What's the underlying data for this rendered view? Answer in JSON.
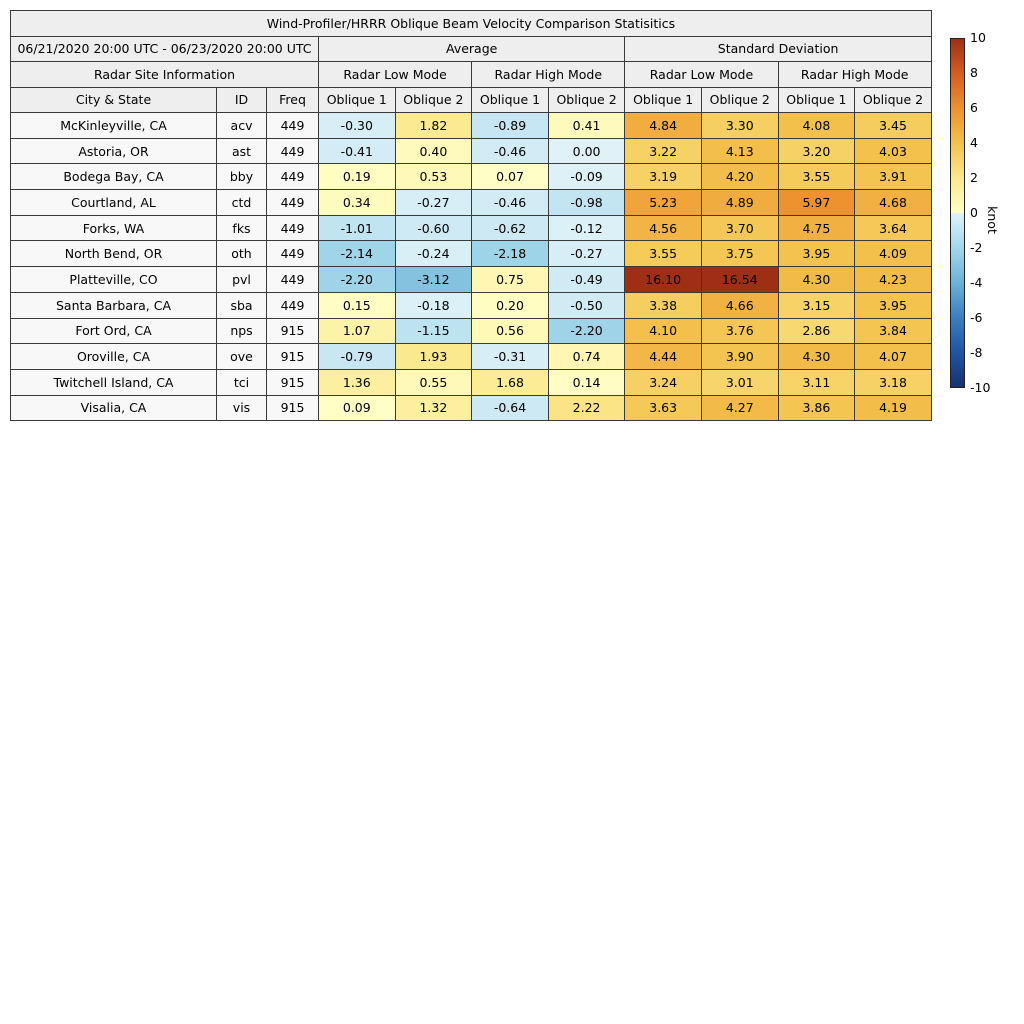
{
  "figure": {
    "title": "Wind-Profiler/HRRR Oblique Beam Velocity Comparison Statisitics"
  },
  "table": {
    "date_range": "06/21/2020 20:00 UTC - 06/23/2020 20:00 UTC",
    "group_average": "Average",
    "group_std": "Standard Deviation",
    "site_info_header": "Radar Site Information",
    "mode_headers": [
      "Radar Low Mode",
      "Radar High Mode",
      "Radar Low Mode",
      "Radar High Mode"
    ],
    "col_city": "City & State",
    "col_id": "ID",
    "col_freq": "Freq",
    "oblique_headers": [
      "Oblique 1",
      "Oblique 2",
      "Oblique 1",
      "Oblique 2",
      "Oblique 1",
      "Oblique 2",
      "Oblique 1",
      "Oblique 2"
    ],
    "rows": [
      {
        "city": "McKinleyville, CA",
        "id": "acv",
        "freq": "449",
        "values": [
          "-0.30",
          "1.82",
          "-0.89",
          "0.41",
          "4.84",
          "3.30",
          "4.08",
          "3.45"
        ]
      },
      {
        "city": "Astoria, OR",
        "id": "ast",
        "freq": "449",
        "values": [
          "-0.41",
          "0.40",
          "-0.46",
          "0.00",
          "3.22",
          "4.13",
          "3.20",
          "4.03"
        ]
      },
      {
        "city": "Bodega Bay, CA",
        "id": "bby",
        "freq": "449",
        "values": [
          "0.19",
          "0.53",
          "0.07",
          "-0.09",
          "3.19",
          "4.20",
          "3.55",
          "3.91"
        ]
      },
      {
        "city": "Courtland, AL",
        "id": "ctd",
        "freq": "449",
        "values": [
          "0.34",
          "-0.27",
          "-0.46",
          "-0.98",
          "5.23",
          "4.89",
          "5.97",
          "4.68"
        ]
      },
      {
        "city": "Forks, WA",
        "id": "fks",
        "freq": "449",
        "values": [
          "-1.01",
          "-0.60",
          "-0.62",
          "-0.12",
          "4.56",
          "3.70",
          "4.75",
          "3.64"
        ]
      },
      {
        "city": "North Bend, OR",
        "id": "oth",
        "freq": "449",
        "values": [
          "-2.14",
          "-0.24",
          "-2.18",
          "-0.27",
          "3.55",
          "3.75",
          "3.95",
          "4.09"
        ]
      },
      {
        "city": "Platteville, CO",
        "id": "pvl",
        "freq": "449",
        "values": [
          "-2.20",
          "-3.12",
          "0.75",
          "-0.49",
          "16.10",
          "16.54",
          "4.30",
          "4.23"
        ]
      },
      {
        "city": "Santa Barbara, CA",
        "id": "sba",
        "freq": "449",
        "values": [
          "0.15",
          "-0.18",
          "0.20",
          "-0.50",
          "3.38",
          "4.66",
          "3.15",
          "3.95"
        ]
      },
      {
        "city": "Fort Ord, CA",
        "id": "nps",
        "freq": "915",
        "values": [
          "1.07",
          "-1.15",
          "0.56",
          "-2.20",
          "4.10",
          "3.76",
          "2.86",
          "3.84"
        ]
      },
      {
        "city": "Oroville, CA",
        "id": "ove",
        "freq": "915",
        "values": [
          "-0.79",
          "1.93",
          "-0.31",
          "0.74",
          "4.44",
          "3.90",
          "4.30",
          "4.07"
        ]
      },
      {
        "city": "Twitchell Island, CA",
        "id": "tci",
        "freq": "915",
        "values": [
          "1.36",
          "0.55",
          "1.68",
          "0.14",
          "3.24",
          "3.01",
          "3.11",
          "3.18"
        ]
      },
      {
        "city": "Visalia, CA",
        "id": "vis",
        "freq": "915",
        "values": [
          "0.09",
          "1.32",
          "-0.64",
          "2.22",
          "3.63",
          "4.27",
          "3.86",
          "4.19"
        ]
      }
    ]
  },
  "colorbar": {
    "unit": "knot",
    "vmin": -10,
    "vmax": 10,
    "ticks": [
      "10",
      "8",
      "6",
      "4",
      "2",
      "0",
      "-2",
      "-4",
      "-6",
      "-8",
      "-10"
    ],
    "warm_anchors": [
      [
        0,
        "#ffffc8"
      ],
      [
        2,
        "#fbe88c"
      ],
      [
        4,
        "#f3c24c"
      ],
      [
        6,
        "#ee9130"
      ],
      [
        8,
        "#d55d20"
      ],
      [
        10,
        "#9e2f14"
      ]
    ],
    "cool_anchors": [
      [
        0,
        "#e0f2f8"
      ],
      [
        -2,
        "#a3d7ea"
      ],
      [
        -4,
        "#6cb2d8"
      ],
      [
        -6,
        "#3a7fbf"
      ],
      [
        -8,
        "#2155a7"
      ],
      [
        -10,
        "#15306e"
      ]
    ]
  },
  "chart_data": {
    "type": "heatmap",
    "title": "Wind-Profiler/HRRR Oblique Beam Velocity Comparison Statisitics",
    "period": "06/21/2020 20:00 UTC - 06/23/2020 20:00 UTC",
    "value_unit": "knot",
    "color_range": [
      -10,
      10
    ],
    "colorbar_ticks": [
      10,
      8,
      6,
      4,
      2,
      0,
      -2,
      -4,
      -6,
      -8,
      -10
    ],
    "column_groups": [
      {
        "group": "Average",
        "mode": "Radar Low Mode",
        "columns": [
          "Oblique 1",
          "Oblique 2"
        ]
      },
      {
        "group": "Average",
        "mode": "Radar High Mode",
        "columns": [
          "Oblique 1",
          "Oblique 2"
        ]
      },
      {
        "group": "Standard Deviation",
        "mode": "Radar Low Mode",
        "columns": [
          "Oblique 1",
          "Oblique 2"
        ]
      },
      {
        "group": "Standard Deviation",
        "mode": "Radar High Mode",
        "columns": [
          "Oblique 1",
          "Oblique 2"
        ]
      }
    ],
    "rows": [
      {
        "city": "McKinleyville, CA",
        "id": "acv",
        "freq": 449,
        "avg_low": [
          -0.3,
          1.82
        ],
        "avg_high": [
          -0.89,
          0.41
        ],
        "std_low": [
          4.84,
          3.3
        ],
        "std_high": [
          4.08,
          3.45
        ]
      },
      {
        "city": "Astoria, OR",
        "id": "ast",
        "freq": 449,
        "avg_low": [
          -0.41,
          0.4
        ],
        "avg_high": [
          -0.46,
          0.0
        ],
        "std_low": [
          3.22,
          4.13
        ],
        "std_high": [
          3.2,
          4.03
        ]
      },
      {
        "city": "Bodega Bay, CA",
        "id": "bby",
        "freq": 449,
        "avg_low": [
          0.19,
          0.53
        ],
        "avg_high": [
          0.07,
          -0.09
        ],
        "std_low": [
          3.19,
          4.2
        ],
        "std_high": [
          3.55,
          3.91
        ]
      },
      {
        "city": "Courtland, AL",
        "id": "ctd",
        "freq": 449,
        "avg_low": [
          0.34,
          -0.27
        ],
        "avg_high": [
          -0.46,
          -0.98
        ],
        "std_low": [
          5.23,
          4.89
        ],
        "std_high": [
          5.97,
          4.68
        ]
      },
      {
        "city": "Forks, WA",
        "id": "fks",
        "freq": 449,
        "avg_low": [
          -1.01,
          -0.6
        ],
        "avg_high": [
          -0.62,
          -0.12
        ],
        "std_low": [
          4.56,
          3.7
        ],
        "std_high": [
          4.75,
          3.64
        ]
      },
      {
        "city": "North Bend, OR",
        "id": "oth",
        "freq": 449,
        "avg_low": [
          -2.14,
          -0.24
        ],
        "avg_high": [
          -2.18,
          -0.27
        ],
        "std_low": [
          3.55,
          3.75
        ],
        "std_high": [
          3.95,
          4.09
        ]
      },
      {
        "city": "Platteville, CO",
        "id": "pvl",
        "freq": 449,
        "avg_low": [
          -2.2,
          -3.12
        ],
        "avg_high": [
          0.75,
          -0.49
        ],
        "std_low": [
          16.1,
          16.54
        ],
        "std_high": [
          4.3,
          4.23
        ]
      },
      {
        "city": "Santa Barbara, CA",
        "id": "sba",
        "freq": 449,
        "avg_low": [
          0.15,
          -0.18
        ],
        "avg_high": [
          0.2,
          -0.5
        ],
        "std_low": [
          3.38,
          4.66
        ],
        "std_high": [
          3.15,
          3.95
        ]
      },
      {
        "city": "Fort Ord, CA",
        "id": "nps",
        "freq": 915,
        "avg_low": [
          1.07,
          -1.15
        ],
        "avg_high": [
          0.56,
          -2.2
        ],
        "std_low": [
          4.1,
          3.76
        ],
        "std_high": [
          2.86,
          3.84
        ]
      },
      {
        "city": "Oroville, CA",
        "id": "ove",
        "freq": 915,
        "avg_low": [
          -0.79,
          1.93
        ],
        "avg_high": [
          -0.31,
          0.74
        ],
        "std_low": [
          4.44,
          3.9
        ],
        "std_high": [
          4.3,
          4.07
        ]
      },
      {
        "city": "Twitchell Island, CA",
        "id": "tci",
        "freq": 915,
        "avg_low": [
          1.36,
          0.55
        ],
        "avg_high": [
          1.68,
          0.14
        ],
        "std_low": [
          3.24,
          3.01
        ],
        "std_high": [
          3.11,
          3.18
        ]
      },
      {
        "city": "Visalia, CA",
        "id": "vis",
        "freq": 915,
        "avg_low": [
          0.09,
          1.32
        ],
        "avg_high": [
          -0.64,
          2.22
        ],
        "std_low": [
          3.63,
          4.27
        ],
        "std_high": [
          3.86,
          4.19
        ]
      }
    ]
  }
}
